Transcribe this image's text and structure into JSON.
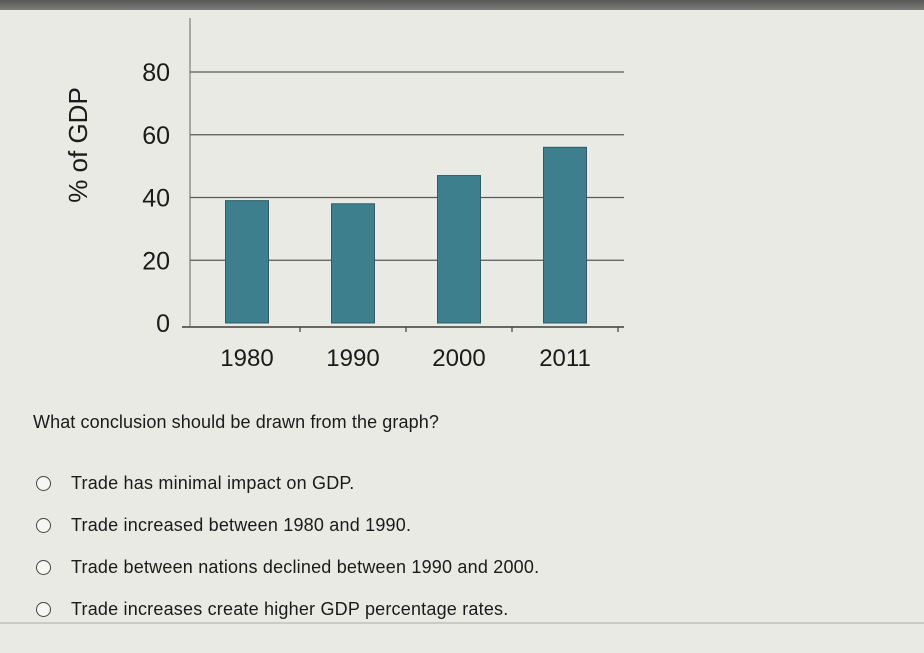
{
  "chart_data": {
    "type": "bar",
    "categories": [
      "1980",
      "1990",
      "2000",
      "2011"
    ],
    "values": [
      39,
      38,
      47,
      56
    ],
    "title": "",
    "xlabel": "",
    "ylabel": "% of GDP",
    "ylim": [
      0,
      80
    ],
    "yticks": [
      0,
      20,
      40,
      60,
      80
    ],
    "grid": true,
    "bar_color": "#3d7f8d"
  },
  "question": {
    "text": "What conclusion should be drawn from the graph?",
    "options": [
      {
        "label": "Trade has minimal impact on GDP."
      },
      {
        "label": "Trade increased between 1980 and 1990."
      },
      {
        "label": "Trade between nations declined between 1990 and 2000."
      },
      {
        "label": "Trade increases create higher GDP percentage rates."
      }
    ]
  }
}
